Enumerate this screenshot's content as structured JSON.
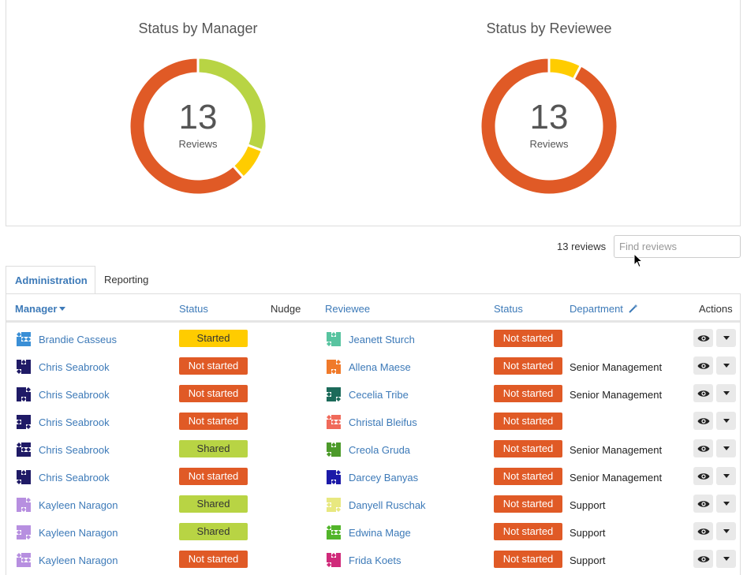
{
  "charts": [
    {
      "title": "Status by Manager",
      "count": "13",
      "label": "Reviews"
    },
    {
      "title": "Status by Reviewee",
      "count": "13",
      "label": "Reviews"
    }
  ],
  "chart_data": [
    {
      "type": "pie",
      "title": "Status by Manager",
      "categories": [
        "Shared",
        "Started",
        "Not started"
      ],
      "values": [
        4,
        1,
        8
      ],
      "colors": [
        "#b8d444",
        "#ffcc00",
        "#e05a26"
      ]
    },
    {
      "type": "pie",
      "title": "Status by Reviewee",
      "categories": [
        "Started",
        "Not started"
      ],
      "values": [
        1,
        12
      ],
      "colors": [
        "#ffcc00",
        "#e05a26"
      ]
    }
  ],
  "toolbar": {
    "count": "13 reviews",
    "search_placeholder": "Find reviews"
  },
  "tabs": [
    "Administration",
    "Reporting"
  ],
  "headers": {
    "manager": "Manager",
    "status": "Status",
    "nudge": "Nudge",
    "reviewee": "Reviewee",
    "status2": "Status",
    "department": "Department",
    "actions": "Actions"
  },
  "status_colors": {
    "Started": "#ffcc00",
    "Not started": "#e05a26",
    "Shared": "#b8d444"
  },
  "rows": [
    {
      "manager": "Brandie Casseus",
      "manager_status": "Started",
      "reviewee": "Jeanett Sturch",
      "reviewee_status": "Not started",
      "department": ""
    },
    {
      "manager": "Chris Seabrook",
      "manager_status": "Not started",
      "reviewee": "Allena Maese",
      "reviewee_status": "Not started",
      "department": "Senior Management"
    },
    {
      "manager": "Chris Seabrook",
      "manager_status": "Not started",
      "reviewee": "Cecelia Tribe",
      "reviewee_status": "Not started",
      "department": "Senior Management"
    },
    {
      "manager": "Chris Seabrook",
      "manager_status": "Not started",
      "reviewee": "Christal Bleifus",
      "reviewee_status": "Not started",
      "department": ""
    },
    {
      "manager": "Chris Seabrook",
      "manager_status": "Shared",
      "reviewee": "Creola Gruda",
      "reviewee_status": "Not started",
      "department": "Senior Management"
    },
    {
      "manager": "Chris Seabrook",
      "manager_status": "Not started",
      "reviewee": "Darcey Banyas",
      "reviewee_status": "Not started",
      "department": "Senior Management"
    },
    {
      "manager": "Kayleen Naragon",
      "manager_status": "Shared",
      "reviewee": "Danyell Ruschak",
      "reviewee_status": "Not started",
      "department": "Support"
    },
    {
      "manager": "Kayleen Naragon",
      "manager_status": "Shared",
      "reviewee": "Edwina Mage",
      "reviewee_status": "Not started",
      "department": "Support"
    },
    {
      "manager": "Kayleen Naragon",
      "manager_status": "Not started",
      "reviewee": "Frida Koets",
      "reviewee_status": "Not started",
      "department": "Support"
    }
  ],
  "avatar_colors": {
    "Brandie Casseus": "#3a8fd6",
    "Chris Seabrook": "#1f1a66",
    "Kayleen Naragon": "#b78fe0",
    "Jeanett Sturch": "#58c4a0",
    "Allena Maese": "#f07a2a",
    "Cecelia Tribe": "#1c6a5a",
    "Christal Bleifus": "#f06a5a",
    "Creola Gruda": "#4c9a2a",
    "Darcey Banyas": "#1c1aa8",
    "Danyell Ruschak": "#e8e880",
    "Edwina Mage": "#52b52a",
    "Frida Koets": "#d02a7a"
  }
}
